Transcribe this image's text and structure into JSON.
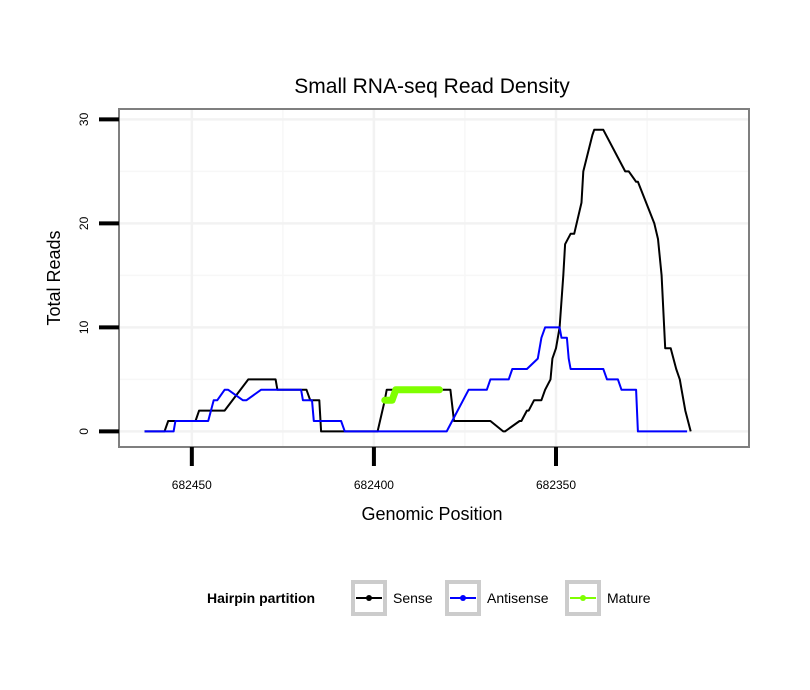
{
  "chart_data": {
    "type": "line",
    "title": "Small RNA-seq Read Density",
    "xlabel": "Genomic Position",
    "ylabel": "Total Reads",
    "xlim": [
      682470,
      682297
    ],
    "ylim": [
      -1.5,
      31
    ],
    "x_reversed": true,
    "xticks": [
      682450,
      682400,
      682350
    ],
    "xtick_labels": [
      "682450",
      "682400",
      "682350"
    ],
    "yticks": [
      0,
      10,
      20,
      30
    ],
    "ytick_labels": [
      "0",
      "10",
      "20",
      "30"
    ],
    "grid": true,
    "legend": {
      "title": "Hairpin partition",
      "position": "bottom",
      "entries": [
        "Sense",
        "Antisense",
        "Mature"
      ]
    },
    "colors": {
      "Sense": "#000000",
      "Antisense": "#0000ff",
      "Mature": "#7fff00"
    },
    "series": [
      {
        "name": "Sense",
        "x": [
          682463,
          682457.5,
          682456.5,
          682449,
          682448,
          682442,
          682441,
          682434.5,
          682434,
          682427,
          682426.5,
          682418.5,
          682417.5,
          682415,
          682414.5,
          682399.5,
          682399,
          682397,
          682396.5,
          682379,
          682378,
          682368.5,
          682368,
          682364.5,
          682364,
          682360,
          682359.5,
          682358,
          682357.5,
          682356,
          682355.5,
          682354,
          682353,
          682351.5,
          682351,
          682350,
          682349,
          682348,
          682347.5,
          682346,
          682345,
          682343,
          682342.5,
          682340,
          682339.5,
          682337.5,
          682337,
          682331,
          682330,
          682328,
          682327.5,
          682323,
          682322,
          682321,
          682320,
          682318.5,
          682317,
          682316,
          682315.5,
          682314.5,
          682313
        ],
        "y": [
          0,
          0,
          1,
          1,
          2,
          2,
          2,
          5,
          5,
          5,
          4,
          4,
          3,
          3,
          0,
          0,
          0,
          3,
          4,
          4,
          1,
          1,
          1,
          0,
          0,
          1,
          1,
          2,
          2,
          3,
          3,
          3,
          4,
          5,
          7,
          8,
          10,
          15,
          18,
          19,
          19,
          22,
          25,
          28.5,
          29,
          29,
          29,
          25,
          25,
          24,
          24,
          20,
          18.5,
          15,
          8,
          8,
          6,
          5,
          4,
          2,
          0
        ]
      },
      {
        "name": "Antisense",
        "x": [
          682463,
          682455,
          682454.5,
          682446,
          682445.5,
          682444,
          682443,
          682441,
          682440,
          682436,
          682435,
          682431,
          682430,
          682424,
          682423,
          682420,
          682419.5,
          682417,
          682416.5,
          682409,
          682408,
          682381,
          682380,
          682374,
          682373,
          682369,
          682368,
          682363,
          682362,
          682359,
          682358,
          682355,
          682354,
          682353,
          682351.5,
          682349,
          682348.5,
          682347,
          682346.5,
          682346,
          682345,
          682337,
          682336,
          682333,
          682332,
          682328,
          682327.5,
          682322,
          682321,
          682314
        ],
        "y": [
          0,
          0,
          1,
          1,
          1,
          3,
          3,
          4,
          4,
          3,
          3,
          4,
          4,
          4,
          4,
          4,
          3,
          3,
          1,
          1,
          0,
          0,
          0,
          4,
          4,
          4,
          5,
          5,
          6,
          6,
          6,
          7,
          9,
          10,
          10,
          10,
          9,
          9,
          7,
          6,
          6,
          6,
          5,
          5,
          4,
          4,
          0,
          0,
          0,
          0
        ]
      },
      {
        "name": "Mature",
        "x": [
          682397,
          682395,
          682394,
          682382
        ],
        "y": [
          3,
          3,
          4,
          4
        ]
      }
    ]
  }
}
